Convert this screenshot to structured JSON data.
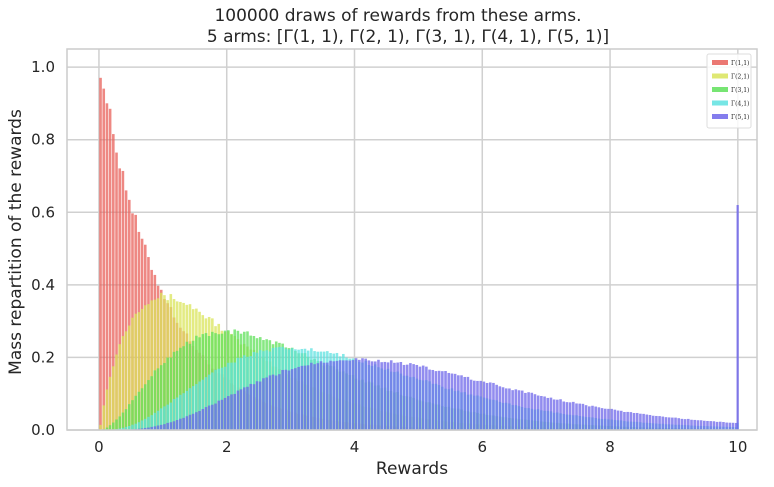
{
  "chart_data": {
    "type": "bar",
    "title": "100000 draws of rewards from these arms.",
    "subtitle": "5 arms: [Γ(1, 1), Γ(2, 1), Γ(3, 1), Γ(4, 1), Γ(5, 1)]",
    "xlabel": "Rewards",
    "ylabel": "Mass repartition of the rewards",
    "xlim": [
      -0.5,
      10.3
    ],
    "ylim": [
      0,
      1.05
    ],
    "xticks": [
      0,
      2,
      4,
      6,
      8,
      10
    ],
    "xtick_labels": [
      "0",
      "2",
      "4",
      "6",
      "8",
      "10"
    ],
    "yticks": [
      0.0,
      0.2,
      0.4,
      0.6,
      0.8,
      1.0
    ],
    "ytick_labels": [
      "0.0",
      "0.2",
      "0.4",
      "0.6",
      "0.8",
      "1.0"
    ],
    "grid": true,
    "legend_position": "top-right",
    "bin_width": 0.05,
    "x_range": [
      0,
      10
    ],
    "series": [
      {
        "name": "Γ(1,1)",
        "color": "#e8605a",
        "shape": 1,
        "peak_value": 0.99,
        "clipped_tail_at_10": 0.0
      },
      {
        "name": "Γ(2,1)",
        "color": "#d9e45a",
        "shape": 2,
        "peak_value": 0.37,
        "clipped_tail_at_10": 0.0
      },
      {
        "name": "Γ(3,1)",
        "color": "#5fe05a",
        "shape": 3,
        "peak_value": 0.27,
        "clipped_tail_at_10": 0.0
      },
      {
        "name": "Γ(4,1)",
        "color": "#5ee2e0",
        "shape": 4,
        "peak_value": 0.224,
        "clipped_tail_at_10": 0.02
      },
      {
        "name": "Γ(5,1)",
        "color": "#6e66ea",
        "shape": 5,
        "peak_value": 0.195,
        "clipped_tail_at_10": 0.62
      }
    ]
  }
}
